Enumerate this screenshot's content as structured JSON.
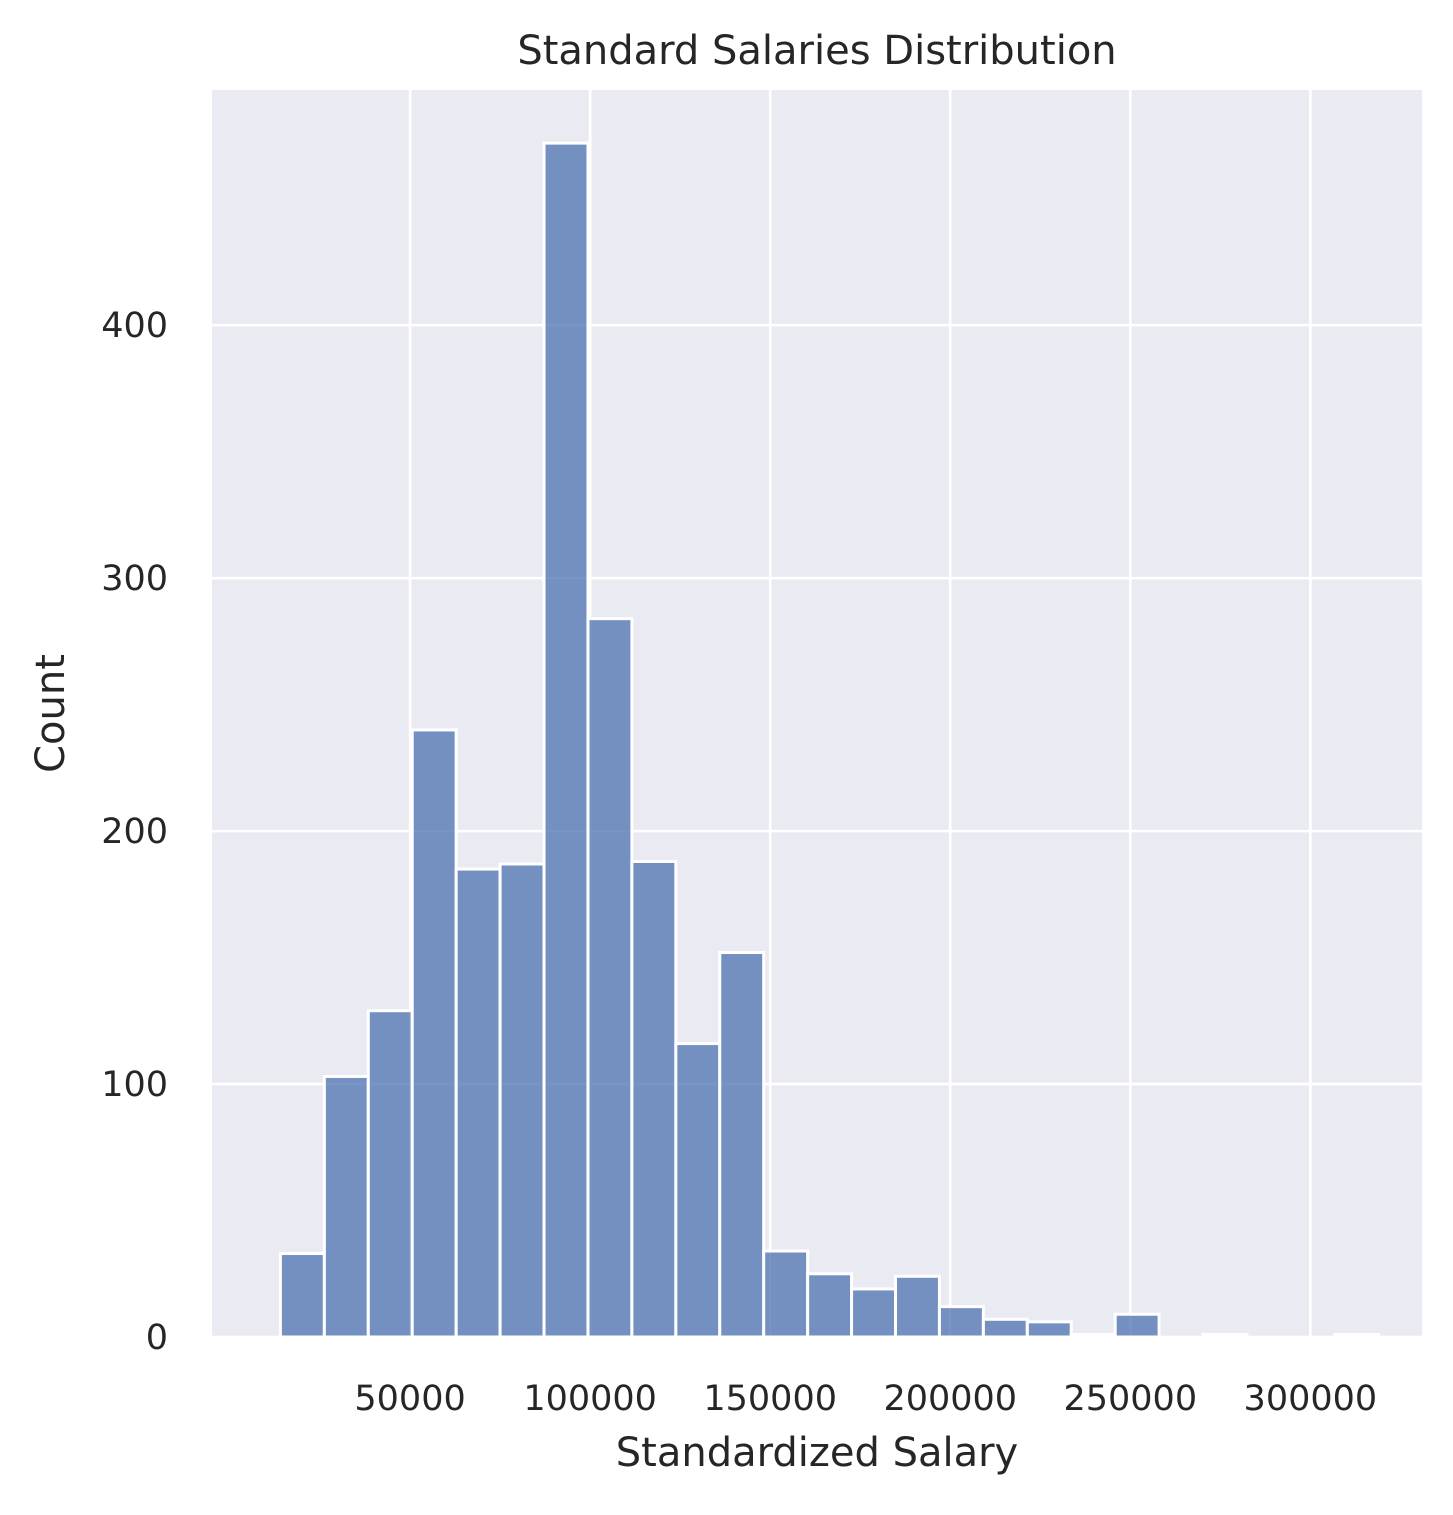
{
  "chart_data": {
    "type": "bar",
    "title": "Standard Salaries Distribution",
    "xlabel": "Standardized Salary",
    "ylabel": "Count",
    "xlim": [
      -5000,
      331000
    ],
    "ylim": [
      0,
      493
    ],
    "xticks": [
      50000,
      100000,
      150000,
      200000,
      250000,
      300000
    ],
    "yticks": [
      0,
      100,
      200,
      300,
      400
    ],
    "xtick_labels": [
      "50000",
      "100000",
      "150000",
      "200000",
      "250000",
      "300000"
    ],
    "ytick_labels": [
      "0",
      "100",
      "200",
      "300",
      "400"
    ],
    "bins": [
      {
        "x0": 14000,
        "x1": 26200,
        "count": 33
      },
      {
        "x0": 26200,
        "x1": 38400,
        "count": 103
      },
      {
        "x0": 38400,
        "x1": 50600,
        "count": 129
      },
      {
        "x0": 50600,
        "x1": 62800,
        "count": 240
      },
      {
        "x0": 62800,
        "x1": 75000,
        "count": 185
      },
      {
        "x0": 75000,
        "x1": 87200,
        "count": 187
      },
      {
        "x0": 87200,
        "x1": 99400,
        "count": 472
      },
      {
        "x0": 99400,
        "x1": 111600,
        "count": 284
      },
      {
        "x0": 111600,
        "x1": 123800,
        "count": 188
      },
      {
        "x0": 123800,
        "x1": 136000,
        "count": 116
      },
      {
        "x0": 136000,
        "x1": 148200,
        "count": 152
      },
      {
        "x0": 148200,
        "x1": 160400,
        "count": 34
      },
      {
        "x0": 160400,
        "x1": 172600,
        "count": 25
      },
      {
        "x0": 172600,
        "x1": 184800,
        "count": 19
      },
      {
        "x0": 184800,
        "x1": 197000,
        "count": 24
      },
      {
        "x0": 197000,
        "x1": 209200,
        "count": 12
      },
      {
        "x0": 209200,
        "x1": 221400,
        "count": 7
      },
      {
        "x0": 221400,
        "x1": 233600,
        "count": 6
      },
      {
        "x0": 233600,
        "x1": 245800,
        "count": 1
      },
      {
        "x0": 245800,
        "x1": 258000,
        "count": 9
      },
      {
        "x0": 258000,
        "x1": 270200,
        "count": 0
      },
      {
        "x0": 270200,
        "x1": 282400,
        "count": 1
      },
      {
        "x0": 282400,
        "x1": 294600,
        "count": 0
      },
      {
        "x0": 294600,
        "x1": 306800,
        "count": 0
      },
      {
        "x0": 306800,
        "x1": 319000,
        "count": 1
      }
    ],
    "grid": true,
    "colors": {
      "bar": "#4c72b0",
      "background": "#eaeaf2",
      "grid": "#ffffff",
      "text": "#262626"
    }
  }
}
